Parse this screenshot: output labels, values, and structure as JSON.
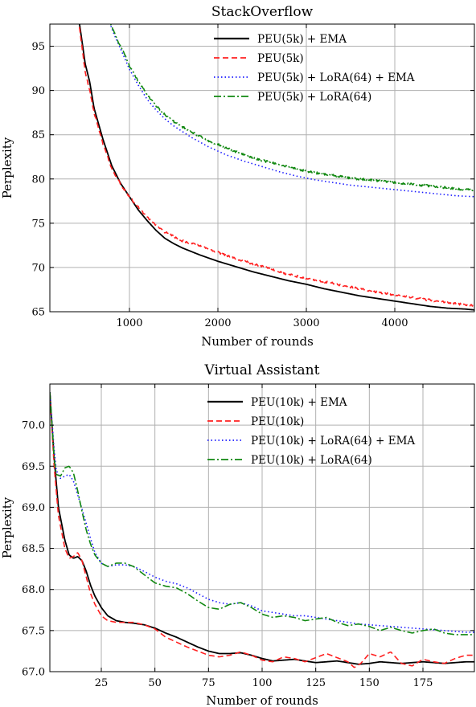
{
  "chart_data": [
    {
      "type": "line",
      "title": "StackOverflow",
      "xlabel": "Number of rounds",
      "ylabel": "Perplexity",
      "xlim": [
        100,
        4900
      ],
      "ylim": [
        65,
        97.5
      ],
      "x_ticks": [
        1000,
        2000,
        3000,
        4000
      ],
      "y_ticks": [
        65,
        70,
        75,
        80,
        85,
        90,
        95
      ],
      "grid": true,
      "legend_position": "top-right",
      "series": [
        {
          "name": "PEU(5k) + EMA",
          "color": "#000000",
          "dash": "solid",
          "noise": 0,
          "x": [
            100,
            400,
            500,
            550,
            600,
            700,
            800,
            900,
            1000,
            1100,
            1200,
            1300,
            1400,
            1500,
            1600,
            1800,
            2000,
            2200,
            2400,
            2600,
            2800,
            3000,
            3200,
            3400,
            3600,
            3800,
            4000,
            4200,
            4400,
            4600,
            4800,
            4900
          ],
          "y": [
            120,
            100,
            93,
            91,
            88,
            84.5,
            81.5,
            79.5,
            78,
            76.5,
            75.3,
            74.2,
            73.3,
            72.7,
            72.2,
            71.4,
            70.7,
            70.1,
            69.5,
            69.0,
            68.5,
            68.1,
            67.6,
            67.2,
            66.8,
            66.5,
            66.2,
            65.9,
            65.6,
            65.4,
            65.3,
            65.2
          ]
        },
        {
          "name": "PEU(5k)",
          "color": "#ff2020",
          "dash": "dashed",
          "noise": 0.25,
          "x": [
            100,
            400,
            500,
            550,
            600,
            700,
            800,
            900,
            1000,
            1100,
            1200,
            1300,
            1400,
            1500,
            1600,
            1800,
            2000,
            2200,
            2400,
            2600,
            2800,
            3000,
            3200,
            3400,
            3600,
            3800,
            4000,
            4200,
            4400,
            4600,
            4800,
            4900
          ],
          "y": [
            120,
            100,
            92,
            90,
            87.5,
            84,
            81.2,
            79.4,
            78,
            76.8,
            75.7,
            74.8,
            74.0,
            73.5,
            73.0,
            72.4,
            71.7,
            71.0,
            70.4,
            69.8,
            69.2,
            68.8,
            68.4,
            68.0,
            67.6,
            67.2,
            66.9,
            66.6,
            66.3,
            66.0,
            65.8,
            65.7
          ]
        },
        {
          "name": "PEU(5k) + LoRA(64) + EMA",
          "color": "#1a1aff",
          "dash": "dotted",
          "noise": 0,
          "x": [
            700,
            750,
            800,
            850,
            900,
            1000,
            1100,
            1200,
            1300,
            1400,
            1500,
            1700,
            1900,
            2100,
            2300,
            2500,
            2700,
            2900,
            3100,
            3300,
            3500,
            3700,
            3900,
            4100,
            4300,
            4500,
            4700,
            4900
          ],
          "y": [
            100,
            98.5,
            97,
            95.8,
            94.7,
            92.4,
            90.6,
            89.0,
            87.8,
            86.8,
            86.0,
            84.7,
            83.6,
            82.7,
            82.0,
            81.4,
            80.8,
            80.3,
            79.9,
            79.6,
            79.3,
            79.1,
            78.9,
            78.7,
            78.5,
            78.3,
            78.1,
            78.0
          ]
        },
        {
          "name": "PEU(5k) + LoRA(64)",
          "color": "#118811",
          "dash": "dashdot",
          "noise": 0.25,
          "x": [
            700,
            750,
            800,
            850,
            900,
            1000,
            1100,
            1200,
            1300,
            1400,
            1500,
            1700,
            1900,
            2100,
            2300,
            2500,
            2700,
            2900,
            3100,
            3300,
            3500,
            3700,
            3900,
            4100,
            4300,
            4500,
            4700,
            4900
          ],
          "y": [
            100,
            98.5,
            97.2,
            96,
            95,
            92.8,
            91.0,
            89.5,
            88.3,
            87.3,
            86.5,
            85.3,
            84.3,
            83.5,
            82.7,
            82.1,
            81.6,
            81.1,
            80.7,
            80.4,
            80.1,
            79.9,
            79.7,
            79.5,
            79.3,
            79.1,
            78.9,
            78.7
          ]
        }
      ]
    },
    {
      "type": "line",
      "title": "Virtual Assistant",
      "xlabel": "Number of rounds",
      "ylabel": "Perplexity",
      "xlim": [
        1,
        199
      ],
      "ylim": [
        67.0,
        70.5
      ],
      "x_ticks": [
        25,
        50,
        75,
        100,
        125,
        150,
        175
      ],
      "y_ticks": [
        67.0,
        67.5,
        68.0,
        68.5,
        69.0,
        69.5,
        70.0
      ],
      "y_tick_labels": [
        "67.0",
        "67.5",
        "68.0",
        "68.5",
        "69.0",
        "69.5",
        "70.0"
      ],
      "grid": true,
      "legend_position": "top-right",
      "series": [
        {
          "name": "PEU(10k) + EMA",
          "color": "#000000",
          "dash": "solid",
          "noise": 0,
          "x": [
            1,
            3,
            5,
            8,
            10,
            12,
            14,
            16,
            18,
            20,
            22,
            25,
            28,
            32,
            36,
            40,
            45,
            50,
            55,
            60,
            65,
            70,
            75,
            80,
            85,
            90,
            95,
            100,
            105,
            110,
            115,
            120,
            125,
            130,
            135,
            140,
            145,
            150,
            155,
            160,
            165,
            170,
            175,
            180,
            185,
            190,
            195,
            199
          ],
          "y": [
            70.4,
            69.6,
            69.0,
            68.6,
            68.42,
            68.38,
            68.4,
            68.35,
            68.22,
            68.05,
            67.92,
            67.78,
            67.68,
            67.62,
            67.6,
            67.59,
            67.57,
            67.53,
            67.47,
            67.42,
            67.36,
            67.3,
            67.25,
            67.22,
            67.22,
            67.23,
            67.2,
            67.16,
            67.13,
            67.14,
            67.15,
            67.13,
            67.11,
            67.12,
            67.13,
            67.11,
            67.09,
            67.1,
            67.12,
            67.11,
            67.1,
            67.11,
            67.12,
            67.11,
            67.1,
            67.11,
            67.12,
            67.12
          ]
        },
        {
          "name": "PEU(10k)",
          "color": "#ff2020",
          "dash": "dashed",
          "noise": 0,
          "x": [
            1,
            3,
            5,
            8,
            10,
            12,
            14,
            16,
            18,
            20,
            22,
            25,
            28,
            32,
            36,
            40,
            45,
            50,
            55,
            60,
            65,
            70,
            75,
            80,
            85,
            90,
            95,
            100,
            105,
            110,
            115,
            120,
            125,
            130,
            135,
            140,
            143,
            146,
            150,
            155,
            160,
            165,
            170,
            175,
            180,
            185,
            190,
            195,
            199
          ],
          "y": [
            70.4,
            69.5,
            68.9,
            68.5,
            68.38,
            68.4,
            68.45,
            68.35,
            68.15,
            67.95,
            67.82,
            67.68,
            67.62,
            67.6,
            67.6,
            67.6,
            67.57,
            67.52,
            67.42,
            67.36,
            67.3,
            67.25,
            67.2,
            67.18,
            67.2,
            67.24,
            67.2,
            67.14,
            67.12,
            67.18,
            67.16,
            67.12,
            67.17,
            67.22,
            67.17,
            67.12,
            67.05,
            67.1,
            67.22,
            67.18,
            67.24,
            67.1,
            67.07,
            67.15,
            67.12,
            67.1,
            67.16,
            67.2,
            67.2
          ]
        },
        {
          "name": "PEU(10k) + LoRA(64) + EMA",
          "color": "#1a1aff",
          "dash": "dotted",
          "noise": 0,
          "x": [
            1,
            3,
            4,
            6,
            8,
            10,
            12,
            14,
            16,
            18,
            20,
            22,
            25,
            28,
            32,
            36,
            40,
            45,
            50,
            55,
            60,
            65,
            70,
            75,
            80,
            85,
            90,
            95,
            100,
            105,
            110,
            115,
            120,
            125,
            130,
            135,
            140,
            145,
            150,
            155,
            160,
            165,
            170,
            175,
            180,
            185,
            190,
            195,
            199
          ],
          "y": [
            70.4,
            69.7,
            69.45,
            69.35,
            69.38,
            69.4,
            69.32,
            69.15,
            68.98,
            68.8,
            68.62,
            68.45,
            68.32,
            68.28,
            68.3,
            68.3,
            68.28,
            68.22,
            68.15,
            68.1,
            68.07,
            68.02,
            67.95,
            67.88,
            67.84,
            67.82,
            67.84,
            67.8,
            67.74,
            67.72,
            67.7,
            67.68,
            67.68,
            67.66,
            67.64,
            67.62,
            67.6,
            67.58,
            67.57,
            67.56,
            67.55,
            67.54,
            67.53,
            67.52,
            67.51,
            67.5,
            67.49,
            67.48,
            67.48
          ]
        },
        {
          "name": "PEU(10k) + LoRA(64)",
          "color": "#118811",
          "dash": "dashdot",
          "noise": 0,
          "x": [
            1,
            3,
            4,
            6,
            8,
            10,
            12,
            14,
            16,
            18,
            20,
            22,
            25,
            28,
            32,
            36,
            40,
            45,
            50,
            55,
            60,
            65,
            70,
            75,
            80,
            85,
            90,
            95,
            100,
            105,
            110,
            115,
            120,
            125,
            130,
            135,
            140,
            145,
            150,
            155,
            160,
            165,
            170,
            175,
            180,
            185,
            190,
            195,
            199
          ],
          "y": [
            70.4,
            69.6,
            69.4,
            69.38,
            69.48,
            69.5,
            69.42,
            69.2,
            68.95,
            68.72,
            68.55,
            68.42,
            68.32,
            68.28,
            68.32,
            68.32,
            68.28,
            68.18,
            68.08,
            68.04,
            68.02,
            67.95,
            67.86,
            67.78,
            67.76,
            67.82,
            67.84,
            67.78,
            67.7,
            67.66,
            67.68,
            67.66,
            67.62,
            67.64,
            67.66,
            67.6,
            67.56,
            67.58,
            67.55,
            67.5,
            67.54,
            67.5,
            67.47,
            67.5,
            67.52,
            67.47,
            67.45,
            67.45,
            67.45
          ]
        }
      ]
    }
  ]
}
